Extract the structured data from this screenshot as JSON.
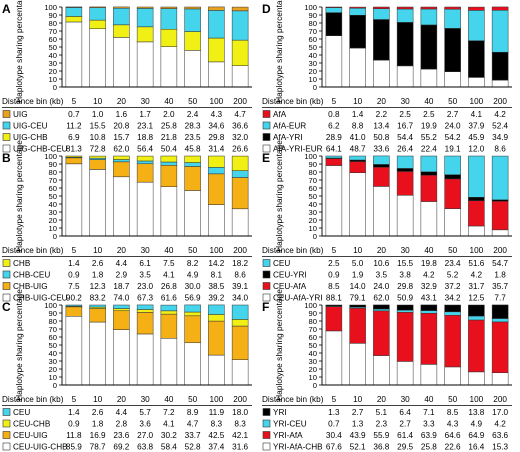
{
  "chart_data": [
    {
      "letter": "A",
      "type": "bar",
      "stacked": true,
      "ylabel": "Haplotype sharing percentage",
      "ylim": [
        0,
        100
      ],
      "yticks": [
        0,
        10,
        20,
        30,
        40,
        50,
        60,
        70,
        80,
        90,
        100
      ],
      "xlabel": "Distance bin (kb)",
      "categories": [
        "5",
        "10",
        "20",
        "30",
        "40",
        "50",
        "100",
        "200"
      ],
      "series": [
        {
          "name": "UIG",
          "color": "#e8a21e",
          "values": [
            0.7,
            1.0,
            1.6,
            1.7,
            2.0,
            2.4,
            4.3,
            4.7
          ]
        },
        {
          "name": "UIG-CEU",
          "color": "#44d4ec",
          "values": [
            11.2,
            15.5,
            20.8,
            23.1,
            25.8,
            28.3,
            34.6,
            36.6
          ]
        },
        {
          "name": "UIG-CHB",
          "color": "#f0f014",
          "values": [
            6.9,
            10.8,
            15.7,
            18.8,
            21.8,
            23.5,
            29.8,
            32.0
          ]
        },
        {
          "name": "UIG-CHB-CEU",
          "color": "#ffffff",
          "values": [
            81.3,
            72.8,
            62.0,
            56.4,
            50.4,
            45.8,
            31.4,
            26.6
          ]
        }
      ]
    },
    {
      "letter": "B",
      "type": "bar",
      "stacked": true,
      "ylabel": "Haplotype sharing percentage",
      "ylim": [
        0,
        100
      ],
      "yticks": [
        0,
        10,
        20,
        30,
        40,
        50,
        60,
        70,
        80,
        90,
        100
      ],
      "xlabel": "Distance bin (kb)",
      "categories": [
        "5",
        "10",
        "20",
        "30",
        "40",
        "50",
        "100",
        "200"
      ],
      "series": [
        {
          "name": "CHB",
          "color": "#f0f014",
          "values": [
            1.4,
            2.6,
            4.4,
            6.1,
            7.5,
            8.2,
            14.2,
            18.2
          ]
        },
        {
          "name": "CHB-CEU",
          "color": "#44d4ec",
          "values": [
            0.9,
            1.8,
            2.9,
            3.5,
            4.1,
            4.9,
            8.1,
            8.6
          ]
        },
        {
          "name": "CHB-UIG",
          "color": "#f5b016",
          "values": [
            7.5,
            12.3,
            18.7,
            23.0,
            26.8,
            30.0,
            38.5,
            39.1
          ]
        },
        {
          "name": "CHB-UIG-CEU",
          "color": "#ffffff",
          "values": [
            90.2,
            83.2,
            74.0,
            67.3,
            61.6,
            56.9,
            39.2,
            34.0
          ]
        }
      ]
    },
    {
      "letter": "C",
      "type": "bar",
      "stacked": true,
      "ylabel": "Haplotype sharing percentage",
      "ylim": [
        0,
        100
      ],
      "yticks": [
        0,
        10,
        20,
        30,
        40,
        50,
        60,
        70,
        80,
        90,
        100
      ],
      "xlabel": "Distance bin (kb)",
      "categories": [
        "5",
        "10",
        "20",
        "30",
        "40",
        "50",
        "100",
        "200"
      ],
      "series": [
        {
          "name": "CEU",
          "color": "#44d4ec",
          "values": [
            1.4,
            2.6,
            4.4,
            5.7,
            7.2,
            8.9,
            11.9,
            18.0
          ]
        },
        {
          "name": "CEU-CHB",
          "color": "#f0f014",
          "values": [
            0.9,
            1.8,
            2.8,
            3.6,
            4.1,
            4.7,
            8.3,
            8.3
          ]
        },
        {
          "name": "CEU-UIG",
          "color": "#f5b016",
          "values": [
            11.8,
            16.9,
            23.6,
            27.0,
            30.2,
            33.7,
            42.5,
            42.1
          ]
        },
        {
          "name": "CEU-UIG-CHB",
          "color": "#ffffff",
          "values": [
            85.9,
            78.7,
            69.2,
            63.8,
            58.4,
            52.8,
            37.4,
            31.6
          ]
        }
      ]
    },
    {
      "letter": "D",
      "type": "bar",
      "stacked": true,
      "ylabel": "Haplotype sharing percentage",
      "ylim": [
        0,
        100
      ],
      "yticks": [
        0,
        10,
        20,
        30,
        40,
        50,
        60,
        70,
        80,
        90,
        100
      ],
      "xlabel": "Distance bin (kb)",
      "categories": [
        "5",
        "10",
        "20",
        "30",
        "40",
        "50",
        "100",
        "200"
      ],
      "series": [
        {
          "name": "AfA",
          "color": "#e8101c",
          "values": [
            0.8,
            1.4,
            2.2,
            2.5,
            2.5,
            2.7,
            4.1,
            4.2
          ]
        },
        {
          "name": "AfA-EUR",
          "color": "#44d4ec",
          "values": [
            6.2,
            8.8,
            13.4,
            16.7,
            19.9,
            24.0,
            37.9,
            52.4
          ]
        },
        {
          "name": "AfA-YRI",
          "color": "#000000",
          "values": [
            28.9,
            41.0,
            50.8,
            54.4,
            55.2,
            54.2,
            45.9,
            34.9
          ]
        },
        {
          "name": "AfA-YRI-EUR",
          "color": "#ffffff",
          "values": [
            64.1,
            48.7,
            33.6,
            26.4,
            22.4,
            19.1,
            12.0,
            8.6
          ]
        }
      ]
    },
    {
      "letter": "E",
      "type": "bar",
      "stacked": true,
      "ylabel": "Haplotype sharing percentage",
      "ylim": [
        0,
        100
      ],
      "yticks": [
        0,
        10,
        20,
        30,
        40,
        50,
        60,
        70,
        80,
        90,
        100
      ],
      "xlabel": "Distance bin (kb)",
      "categories": [
        "5",
        "10",
        "20",
        "30",
        "40",
        "50",
        "100",
        "200"
      ],
      "series": [
        {
          "name": "CEU",
          "color": "#44d4ec",
          "values": [
            2.5,
            5.0,
            10.6,
            15.5,
            19.8,
            23.4,
            51.6,
            54.7
          ]
        },
        {
          "name": "CEU-YRI",
          "color": "#000000",
          "values": [
            0.9,
            1.9,
            3.5,
            3.8,
            4.2,
            5.2,
            4.2,
            1.8
          ]
        },
        {
          "name": "CEU-AfA",
          "color": "#e8101c",
          "values": [
            8.5,
            14.0,
            24.0,
            29.8,
            32.9,
            37.2,
            31.7,
            35.7
          ]
        },
        {
          "name": "CEU-AfA-YRI",
          "color": "#ffffff",
          "values": [
            88.1,
            79.1,
            62.0,
            50.9,
            43.1,
            34.2,
            12.5,
            7.7
          ]
        }
      ]
    },
    {
      "letter": "F",
      "type": "bar",
      "stacked": true,
      "ylabel": "Haplotype sharing percentage",
      "ylim": [
        0,
        100
      ],
      "yticks": [
        0,
        10,
        20,
        30,
        40,
        50,
        60,
        70,
        80,
        90,
        100
      ],
      "xlabel": "Distance bin (kb)",
      "categories": [
        "5",
        "10",
        "20",
        "30",
        "40",
        "50",
        "100",
        "200"
      ],
      "series": [
        {
          "name": "YRI",
          "color": "#000000",
          "values": [
            1.3,
            2.7,
            5.1,
            6.4,
            7.1,
            8.5,
            13.8,
            17.0
          ]
        },
        {
          "name": "YRI-CEU",
          "color": "#44d4ec",
          "values": [
            0.7,
            1.3,
            2.3,
            2.7,
            3.3,
            4.3,
            4.9,
            4.2
          ]
        },
        {
          "name": "YRI-AfA",
          "color": "#e8101c",
          "values": [
            30.4,
            43.9,
            55.9,
            61.4,
            63.9,
            64.6,
            64.9,
            63.6
          ]
        },
        {
          "name": "YRI-AfA-CHB",
          "color": "#ffffff",
          "values": [
            67.6,
            52.1,
            36.8,
            29.5,
            25.8,
            22.6,
            16.4,
            15.3
          ]
        }
      ]
    }
  ]
}
